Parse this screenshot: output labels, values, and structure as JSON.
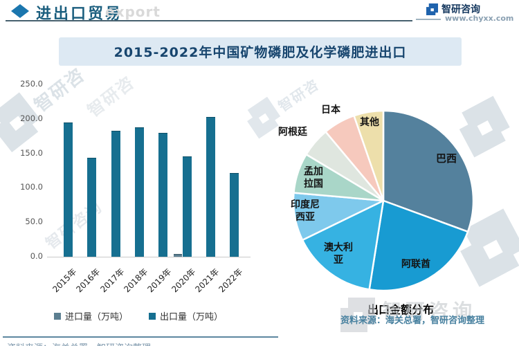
{
  "header": {
    "section_title": "进出口贸易",
    "watermark_en": "export"
  },
  "brand": {
    "name": "智研咨询",
    "url": "www.chyxx.com"
  },
  "chart_title": "2015-2022年中国矿物磷肥及化学磷肥进出口",
  "chart_data": [
    {
      "type": "bar",
      "title": "2015-2022年中国矿物磷肥及化学磷肥进出口",
      "categories": [
        "2015年",
        "2016年",
        "2017年",
        "2018年",
        "2019年",
        "2020年",
        "2021年",
        "2022年"
      ],
      "series": [
        {
          "name": "进口量（万吨）",
          "values": [
            0.2,
            0.2,
            0.2,
            0.2,
            0.2,
            2.6,
            0.3,
            0.2
          ]
        },
        {
          "name": "出口量（万吨）",
          "values": [
            194,
            143,
            182,
            187,
            179,
            145,
            202,
            120
          ]
        }
      ],
      "colors": [
        "#5c7f91",
        "#166f90"
      ],
      "ylim": [
        0,
        250
      ],
      "yticks": [
        "250.0",
        "200.0",
        "150.0",
        "100.0",
        "50.0",
        "0.0"
      ],
      "grid": false,
      "legend_position": "bottom"
    },
    {
      "type": "pie",
      "title": "出口金额分布",
      "labels": [
        "巴西",
        "阿联酋",
        "澳大利亚",
        "印度尼西亚",
        "孟加拉国",
        "阿根廷",
        "日本",
        "其他"
      ],
      "values": [
        30.6,
        21.9,
        15.3,
        8.6,
        7.2,
        5.3,
        5.8,
        5.3
      ],
      "colors": [
        "#54819d",
        "#189bd2",
        "#36b2e2",
        "#7ec9ec",
        "#a9d6c8",
        "#dfe6df",
        "#f6c9bd",
        "#eddfab"
      ],
      "start_angle_deg": 0,
      "direction": "clockwise"
    }
  ],
  "source_note": "资料来源：海关总署，智研咨询整理",
  "bottom_note": "资料来源：海关总署，智研咨询整理",
  "watermark": {
    "logo_text": "智研咨询",
    "logo_text_short": "智研咨"
  }
}
